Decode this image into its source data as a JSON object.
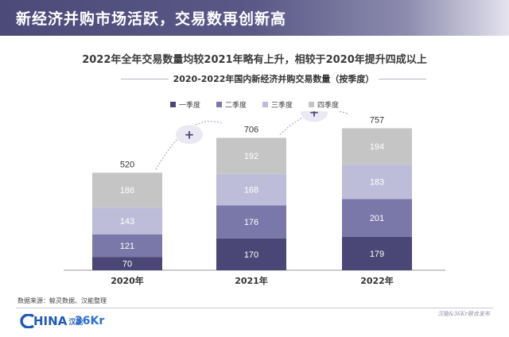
{
  "header": {
    "title": "新经济并购市场活跃，交易数再创新高"
  },
  "headline": "2022年全年交易数量均较2021年略有上升，相较于2020年提升四成以上",
  "source": "数据来源：鲸灵数据、汉能整理",
  "footer_note": "汉能&36Kr联合发布",
  "logos": {
    "china_text": "HINA",
    "china_cjk": "汉能",
    "kr_text": "36Kr"
  },
  "chart_data": {
    "type": "bar",
    "stacked": true,
    "title": "2020-2022年国内新经济并购交易数量（按季度）",
    "categories": [
      "2020年",
      "2021年",
      "2022年"
    ],
    "series": [
      {
        "name": "一季度",
        "values": [
          70,
          170,
          179
        ],
        "color": "#4a4776"
      },
      {
        "name": "二季度",
        "values": [
          121,
          176,
          201
        ],
        "color": "#7a77a9"
      },
      {
        "name": "三季度",
        "values": [
          143,
          168,
          183
        ],
        "color": "#bebdd9"
      },
      {
        "name": "四季度",
        "values": [
          186,
          192,
          194
        ],
        "color": "#c5c5c5"
      }
    ],
    "totals": [
      520,
      706,
      757
    ],
    "growth_markers": [
      "+",
      "+"
    ],
    "legend_position": "top"
  }
}
